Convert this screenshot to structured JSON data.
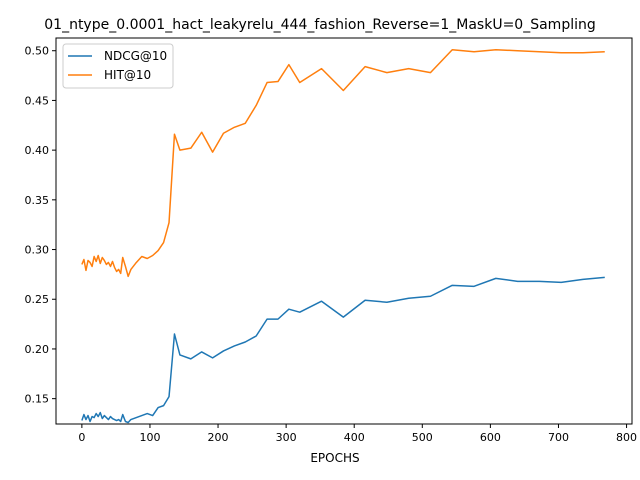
{
  "chart_data": {
    "type": "line",
    "title": "01_ntype_0.0001_hact_leakyrelu_444_fashion_Reverse=1_MaskU=0_Sampling",
    "xlabel": "EPOCHS",
    "ylabel": "",
    "xlim": [
      -38,
      808
    ],
    "ylim": [
      0.1245,
      0.5128
    ],
    "xticks": [
      0,
      100,
      200,
      300,
      400,
      500,
      600,
      700,
      800
    ],
    "yticks": [
      0.15,
      0.2,
      0.25,
      0.3,
      0.35,
      0.4,
      0.45,
      0.5
    ],
    "ytick_labels": [
      "0.15",
      "0.20",
      "0.25",
      "0.30",
      "0.35",
      "0.40",
      "0.45",
      "0.50"
    ],
    "grid": false,
    "legend_position": "top-left",
    "series": [
      {
        "name": "NDCG@10",
        "color": "#1f77b4",
        "x": [
          0,
          3,
          6,
          9,
          12,
          15,
          18,
          21,
          24,
          27,
          30,
          33,
          36,
          39,
          42,
          45,
          48,
          51,
          54,
          57,
          60,
          64,
          68,
          72,
          80,
          88,
          96,
          104,
          112,
          120,
          128,
          136,
          144,
          160,
          176,
          192,
          208,
          224,
          240,
          256,
          272,
          288,
          304,
          320,
          352,
          384,
          416,
          448,
          480,
          512,
          544,
          576,
          608,
          640,
          672,
          704,
          736,
          768
        ],
        "y": [
          0.128,
          0.134,
          0.129,
          0.133,
          0.127,
          0.132,
          0.131,
          0.135,
          0.132,
          0.136,
          0.13,
          0.133,
          0.131,
          0.129,
          0.132,
          0.13,
          0.129,
          0.128,
          0.129,
          0.127,
          0.134,
          0.127,
          0.126,
          0.129,
          0.131,
          0.133,
          0.135,
          0.133,
          0.141,
          0.143,
          0.152,
          0.215,
          0.194,
          0.19,
          0.197,
          0.191,
          0.198,
          0.203,
          0.207,
          0.213,
          0.23,
          0.23,
          0.24,
          0.237,
          0.248,
          0.232,
          0.249,
          0.247,
          0.251,
          0.253,
          0.264,
          0.263,
          0.271,
          0.268,
          0.268,
          0.267,
          0.27,
          0.272
        ]
      },
      {
        "name": "HIT@10",
        "color": "#ff7f0e",
        "x": [
          0,
          3,
          6,
          9,
          12,
          15,
          18,
          21,
          24,
          27,
          30,
          33,
          36,
          39,
          42,
          45,
          48,
          51,
          54,
          57,
          60,
          64,
          68,
          72,
          80,
          88,
          96,
          104,
          112,
          120,
          128,
          136,
          144,
          160,
          176,
          192,
          208,
          224,
          240,
          256,
          272,
          288,
          304,
          320,
          352,
          384,
          416,
          448,
          480,
          512,
          544,
          576,
          608,
          640,
          672,
          704,
          736,
          768
        ],
        "y": [
          0.285,
          0.29,
          0.279,
          0.289,
          0.287,
          0.283,
          0.293,
          0.288,
          0.294,
          0.286,
          0.292,
          0.289,
          0.285,
          0.287,
          0.283,
          0.288,
          0.282,
          0.278,
          0.28,
          0.276,
          0.292,
          0.283,
          0.273,
          0.28,
          0.287,
          0.293,
          0.291,
          0.294,
          0.299,
          0.307,
          0.327,
          0.416,
          0.4,
          0.402,
          0.418,
          0.398,
          0.417,
          0.423,
          0.427,
          0.445,
          0.468,
          0.469,
          0.486,
          0.468,
          0.482,
          0.46,
          0.484,
          0.478,
          0.482,
          0.478,
          0.501,
          0.499,
          0.501,
          0.5,
          0.499,
          0.498,
          0.498,
          0.499
        ]
      }
    ]
  }
}
